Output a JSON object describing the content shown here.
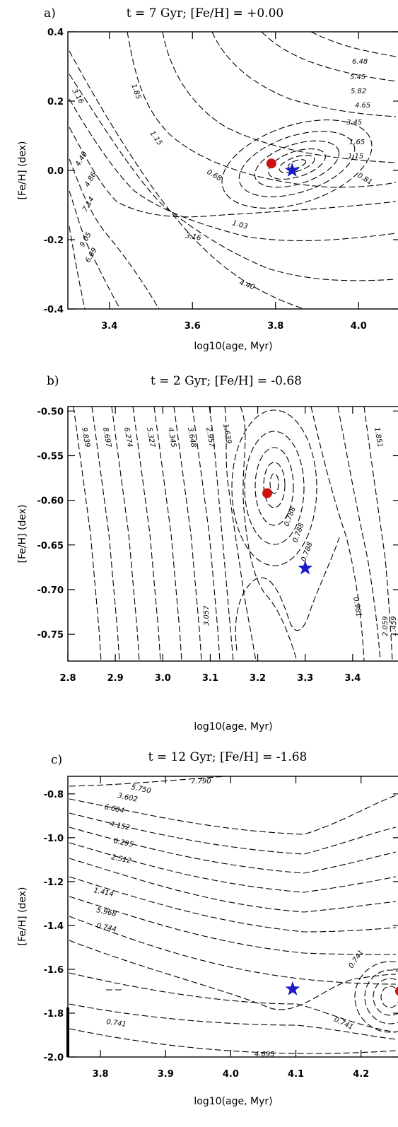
{
  "chart_data": [
    {
      "panel": "a)",
      "type": "contour",
      "title": "t = 7 Gyr; [Fe/H] = +0.00",
      "xlabel": "log10(age, Myr)",
      "ylabel": "[Fe/H] (dex)",
      "xlim": [
        3.3,
        4.1
      ],
      "ylim": [
        -0.4,
        0.4
      ],
      "xticks": [
        "3.4",
        "3.6",
        "3.8",
        "4.0"
      ],
      "yticks": [
        "0.4",
        "0.2",
        "0.0",
        "-0.2",
        "-0.4"
      ],
      "contour_labels": [
        "6.48",
        "5.45",
        "5.82",
        "4.65",
        "3.45",
        "1.65",
        "1.15",
        "0.81",
        "1.85",
        "1.15",
        "0.68",
        "1.03",
        "3.16",
        "4.40",
        "3.16",
        "4.40",
        "4.86",
        "7.14",
        "9.05",
        "6.69"
      ],
      "markers": [
        {
          "symbol": "circle",
          "color": "#cc1111",
          "x": 3.79,
          "y": 0.02
        },
        {
          "symbol": "star",
          "color": "#1a1acc",
          "x": 3.84,
          "y": 0.0
        }
      ]
    },
    {
      "panel": "b)",
      "type": "contour",
      "title": "t = 2 Gyr; [Fe/H] = -0.68",
      "xlabel": "log10(age, Myr)",
      "ylabel": "[Fe/H] (dex)",
      "xlim": [
        2.8,
        3.5
      ],
      "ylim": [
        -0.78,
        -0.495
      ],
      "xticks": [
        "2.8",
        "2.9",
        "3.0",
        "3.1",
        "3.2",
        "3.3",
        "3.4"
      ],
      "yticks": [
        "-0.50",
        "-0.55",
        "-0.60",
        "-0.65",
        "-0.70",
        "-0.75"
      ],
      "contour_labels": [
        "9.839",
        "8.697",
        "6.274",
        "5.327",
        "4.345",
        "3.648",
        "2.957",
        "1.639",
        "0.788",
        "0.788",
        "0.788",
        "0.981",
        "1.851",
        "1.459",
        "2.059",
        "3.057"
      ],
      "markers": [
        {
          "symbol": "circle",
          "color": "#cc1111",
          "x": 3.22,
          "y": -0.592
        },
        {
          "symbol": "star",
          "color": "#1a1acc",
          "x": 3.3,
          "y": -0.676
        }
      ]
    },
    {
      "panel": "c)",
      "type": "contour",
      "title": "t = 12 Gyr; [Fe/H] = -1.68",
      "xlabel": "log10(age, Myr)",
      "ylabel": "[Fe/H] (dex)",
      "xlim": [
        3.75,
        4.26
      ],
      "ylim": [
        -2.0,
        -0.72
      ],
      "xticks": [
        "3.8",
        "3.9",
        "4.0",
        "4.1",
        "4.2"
      ],
      "yticks": [
        "-0.8",
        "-1.0",
        "-1.2",
        "-1.4",
        "-1.6",
        "-1.8",
        "-2.0"
      ],
      "contour_labels": [
        "5.750",
        "7.790",
        "3.602",
        "6.604",
        "4.152",
        "0.295",
        "2.512",
        "1.414",
        "5.968",
        "0.744",
        "0.741",
        "0.741",
        "0.741",
        "4.695"
      ],
      "markers": [
        {
          "symbol": "circle",
          "color": "#cc1111",
          "x": 4.26,
          "y": -1.7
        },
        {
          "symbol": "star",
          "color": "#1a1acc",
          "x": 4.095,
          "y": -1.69
        }
      ]
    }
  ]
}
